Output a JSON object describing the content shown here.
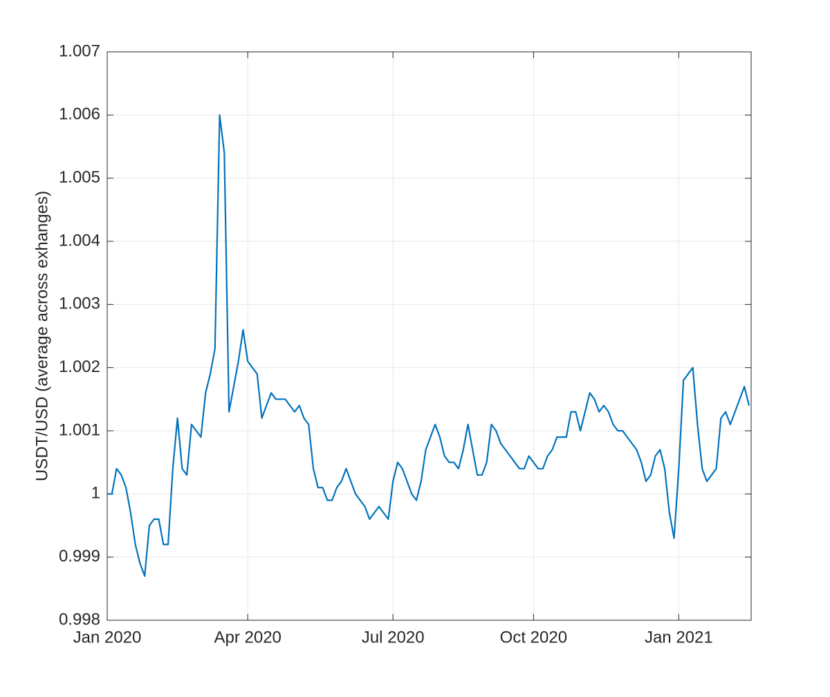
{
  "chart_data": {
    "type": "line",
    "ylabel": "USDT/USD (average across exhanges)",
    "categories": [
      "Jan 2020",
      null,
      null,
      null,
      null,
      null,
      null,
      null,
      null,
      null,
      null,
      null,
      null,
      null,
      null,
      null,
      null,
      null,
      null,
      null,
      null,
      null,
      null,
      null,
      null,
      null,
      null,
      null,
      null,
      null,
      "Apr 2020",
      null,
      null,
      null,
      null,
      null,
      null,
      null,
      null,
      null,
      null,
      null,
      null,
      null,
      null,
      null,
      null,
      null,
      null,
      null,
      null,
      null,
      null,
      null,
      null,
      null,
      null,
      null,
      null,
      null,
      null,
      "Jul 2020",
      null,
      null,
      null,
      null,
      null,
      null,
      null,
      null,
      null,
      null,
      null,
      null,
      null,
      null,
      null,
      null,
      null,
      null,
      null,
      null,
      null,
      null,
      null,
      null,
      null,
      null,
      null,
      null,
      null,
      "Oct 2020",
      null,
      null,
      null,
      null,
      null,
      null,
      null,
      null,
      null,
      null,
      null,
      null,
      null,
      null,
      null,
      null,
      null,
      null,
      null,
      null,
      null,
      null,
      null,
      null,
      null,
      null,
      null,
      null,
      null,
      null,
      "Jan 2021",
      null,
      null,
      null,
      null,
      null,
      null,
      null,
      null,
      null,
      null,
      null,
      null,
      null,
      null,
      null
    ],
    "series": [
      {
        "name": "USDT/USD",
        "color": "#0072bd",
        "values": [
          1.0,
          1.0,
          1.0004,
          1.0003,
          1.0001,
          0.9997,
          0.9992,
          0.9989,
          0.9987,
          0.9995,
          0.9996,
          0.9996,
          0.9992,
          0.9992,
          1.0004,
          1.0012,
          1.0004,
          1.0003,
          1.0011,
          1.001,
          1.0009,
          1.0016,
          1.0019,
          1.0023,
          1.006,
          1.0054,
          1.0013,
          1.0017,
          1.0021,
          1.0026,
          1.0021,
          1.002,
          1.0019,
          1.0012,
          1.0014,
          1.0016,
          1.0015,
          1.0015,
          1.0015,
          1.0014,
          1.0013,
          1.0014,
          1.0012,
          1.0011,
          1.0004,
          1.0001,
          1.0001,
          0.9999,
          0.9999,
          1.0001,
          1.0002,
          1.0004,
          1.0002,
          1.0,
          0.9999,
          0.9998,
          0.9996,
          0.9997,
          0.9998,
          0.9997,
          0.9996,
          1.0002,
          1.0005,
          1.0004,
          1.0002,
          1.0,
          0.9999,
          1.0002,
          1.0007,
          1.0009,
          1.0011,
          1.0009,
          1.0006,
          1.0005,
          1.0005,
          1.0004,
          1.0007,
          1.0011,
          1.0007,
          1.0003,
          1.0003,
          1.0005,
          1.0011,
          1.001,
          1.0008,
          1.0007,
          1.0006,
          1.0005,
          1.0004,
          1.0004,
          1.0006,
          1.0005,
          1.0004,
          1.0004,
          1.0006,
          1.0007,
          1.0009,
          1.0009,
          1.0009,
          1.0013,
          1.0013,
          1.001,
          1.0013,
          1.0016,
          1.0015,
          1.0013,
          1.0014,
          1.0013,
          1.0011,
          1.001,
          1.001,
          1.0009,
          1.0008,
          1.0007,
          1.0005,
          1.0002,
          1.0003,
          1.0006,
          1.0007,
          1.0004,
          0.9997,
          0.9993,
          1.0004,
          1.0018,
          1.0019,
          1.002,
          1.0011,
          1.0004,
          1.0002,
          1.0003,
          1.0004,
          1.0012,
          1.0013,
          1.0011,
          1.0013,
          1.0015,
          1.0017,
          1.0014
        ]
      }
    ],
    "ylim": [
      0.998,
      1.007
    ],
    "yticks": [
      0.998,
      0.999,
      1,
      1.001,
      1.002,
      1.003,
      1.004,
      1.005,
      1.006,
      1.007
    ],
    "grid": true
  }
}
